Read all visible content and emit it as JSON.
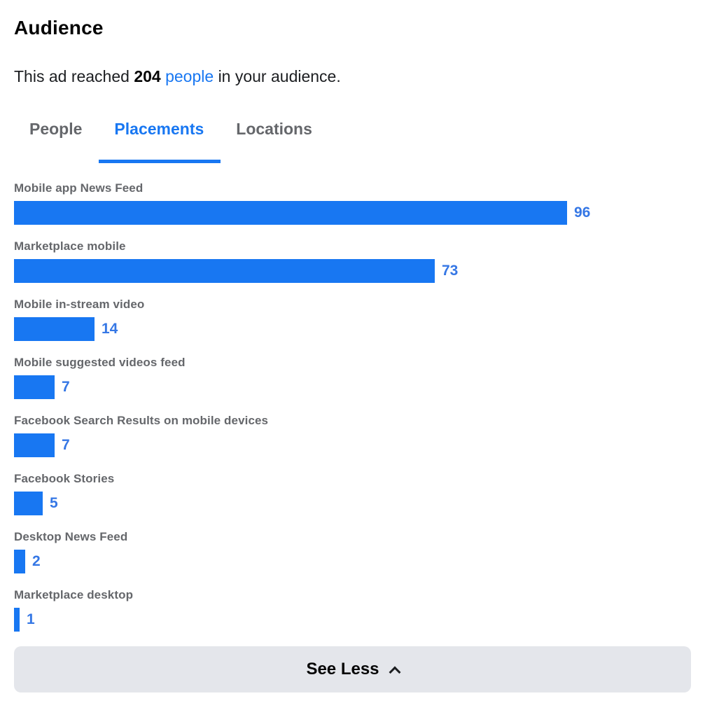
{
  "header": {
    "title": "Audience"
  },
  "reach": {
    "prefix": "This ad reached",
    "count": "204",
    "link": "people",
    "suffix": "in your audience."
  },
  "tabs": [
    {
      "label": "People",
      "active": false
    },
    {
      "label": "Placements",
      "active": true
    },
    {
      "label": "Locations",
      "active": false
    }
  ],
  "chart_data": {
    "type": "bar",
    "orientation": "horizontal",
    "categories": [
      "Mobile app News Feed",
      "Marketplace mobile",
      "Mobile in-stream video",
      "Mobile suggested videos feed",
      "Facebook Search Results on mobile devices",
      "Facebook Stories",
      "Desktop News Feed",
      "Marketplace desktop"
    ],
    "values": [
      96,
      73,
      14,
      7,
      7,
      5,
      2,
      1
    ],
    "xlim": [
      0,
      96
    ],
    "value_labels_shown": true,
    "title": "",
    "xlabel": "",
    "ylabel": "",
    "grid": false,
    "legend": false,
    "bar_color": "#1877F2",
    "value_label_color": "#3577E5",
    "category_label_color": "#65676B"
  },
  "footer": {
    "see_less_label": "See Less",
    "collapse_icon": "chevron-up-icon"
  },
  "colors": {
    "accent_blue": "#1877F2",
    "link_blue": "#1877F2",
    "button_background": "#E4E6EB",
    "text_primary": "#050505",
    "text_secondary": "#65676B"
  }
}
